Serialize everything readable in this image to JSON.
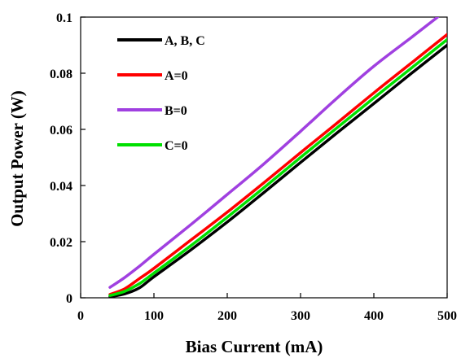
{
  "chart_data": {
    "type": "line",
    "xlabel": "Bias Current (mA)",
    "ylabel": "Output Power (W)",
    "xlim": [
      0,
      500
    ],
    "ylim": [
      0,
      0.1
    ],
    "x_ticks": [
      0,
      100,
      200,
      300,
      400,
      500
    ],
    "x_tick_labels": [
      "0",
      "100",
      "200",
      "300",
      "400",
      "500"
    ],
    "y_ticks": [
      0,
      0.02,
      0.04,
      0.06,
      0.08,
      0.1
    ],
    "y_tick_labels": [
      "0",
      "0.02",
      "0.04",
      "0.06",
      "0.08",
      "0.1"
    ],
    "grid": false,
    "legend_position": "top-left",
    "series": [
      {
        "name": "A, B, C",
        "color": "#000000",
        "points": [
          [
            40,
            0.0004
          ],
          [
            60,
            0.0014
          ],
          [
            80,
            0.0035
          ],
          [
            100,
            0.0075
          ],
          [
            150,
            0.017
          ],
          [
            200,
            0.027
          ],
          [
            250,
            0.0375
          ],
          [
            300,
            0.0482
          ],
          [
            350,
            0.0588
          ],
          [
            400,
            0.0692
          ],
          [
            450,
            0.0797
          ],
          [
            500,
            0.09
          ]
        ]
      },
      {
        "name": "A=0",
        "color": "#ff0000",
        "points": [
          [
            40,
            0.0012
          ],
          [
            60,
            0.0032
          ],
          [
            80,
            0.0068
          ],
          [
            100,
            0.0105
          ],
          [
            150,
            0.0205
          ],
          [
            200,
            0.0305
          ],
          [
            250,
            0.041
          ],
          [
            300,
            0.0517
          ],
          [
            350,
            0.0623
          ],
          [
            400,
            0.073
          ],
          [
            450,
            0.0834
          ],
          [
            500,
            0.0938
          ]
        ]
      },
      {
        "name": "B=0",
        "color": "#a040e0",
        "points": [
          [
            40,
            0.0037
          ],
          [
            60,
            0.0072
          ],
          [
            80,
            0.0112
          ],
          [
            100,
            0.0155
          ],
          [
            150,
            0.026
          ],
          [
            200,
            0.0368
          ],
          [
            250,
            0.0477
          ],
          [
            300,
            0.0593
          ],
          [
            350,
            0.0712
          ],
          [
            400,
            0.0825
          ],
          [
            450,
            0.0925
          ],
          [
            487,
            0.1
          ]
        ]
      },
      {
        "name": "C=0",
        "color": "#00e000",
        "points": [
          [
            40,
            0.0008
          ],
          [
            60,
            0.0023
          ],
          [
            80,
            0.005
          ],
          [
            100,
            0.0088
          ],
          [
            150,
            0.0185
          ],
          [
            200,
            0.0287
          ],
          [
            250,
            0.0392
          ],
          [
            300,
            0.05
          ],
          [
            350,
            0.0606
          ],
          [
            400,
            0.0712
          ],
          [
            450,
            0.0816
          ],
          [
            500,
            0.092
          ]
        ]
      }
    ]
  }
}
